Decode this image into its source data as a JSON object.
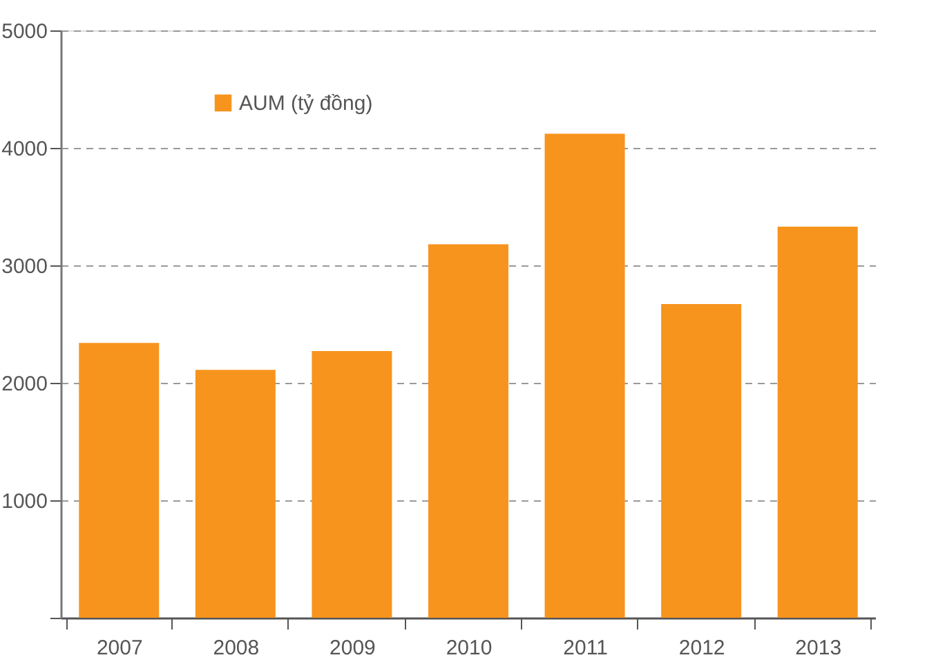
{
  "chart_data": {
    "type": "bar",
    "categories": [
      "2007",
      "2008",
      "2009",
      "2010",
      "2011",
      "2012",
      "2013"
    ],
    "series": [
      {
        "name": "AUM (tỷ đồng)",
        "color": "#f7941d",
        "values": [
          2340,
          2110,
          2270,
          3180,
          4120,
          2670,
          3330
        ]
      }
    ],
    "ylim": [
      0,
      5000
    ],
    "yticks": [
      {
        "value": 0,
        "label": null
      },
      1000,
      2000,
      3000,
      4000,
      5000
    ],
    "grid": "y",
    "legend": "top left"
  }
}
